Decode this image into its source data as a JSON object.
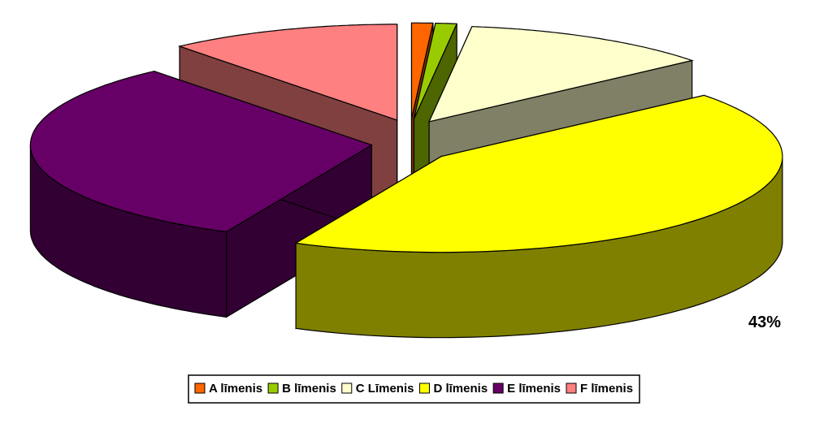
{
  "chart_data": {
    "type": "pie3d",
    "categories": [
      "A līmenis",
      "B līmenis",
      "C Līmenis",
      "D līmenis",
      "E līmenis",
      "F līmenis"
    ],
    "values": [
      1,
      1,
      12,
      43,
      32,
      11
    ],
    "value_labels": [
      "1%",
      "1%",
      "12%",
      "43%",
      "32%",
      "11%"
    ],
    "colors": [
      "#ff6600",
      "#99cc00",
      "#ffffcc",
      "#ffff00",
      "#660066",
      "#ff8080"
    ],
    "legend": "bottom"
  }
}
